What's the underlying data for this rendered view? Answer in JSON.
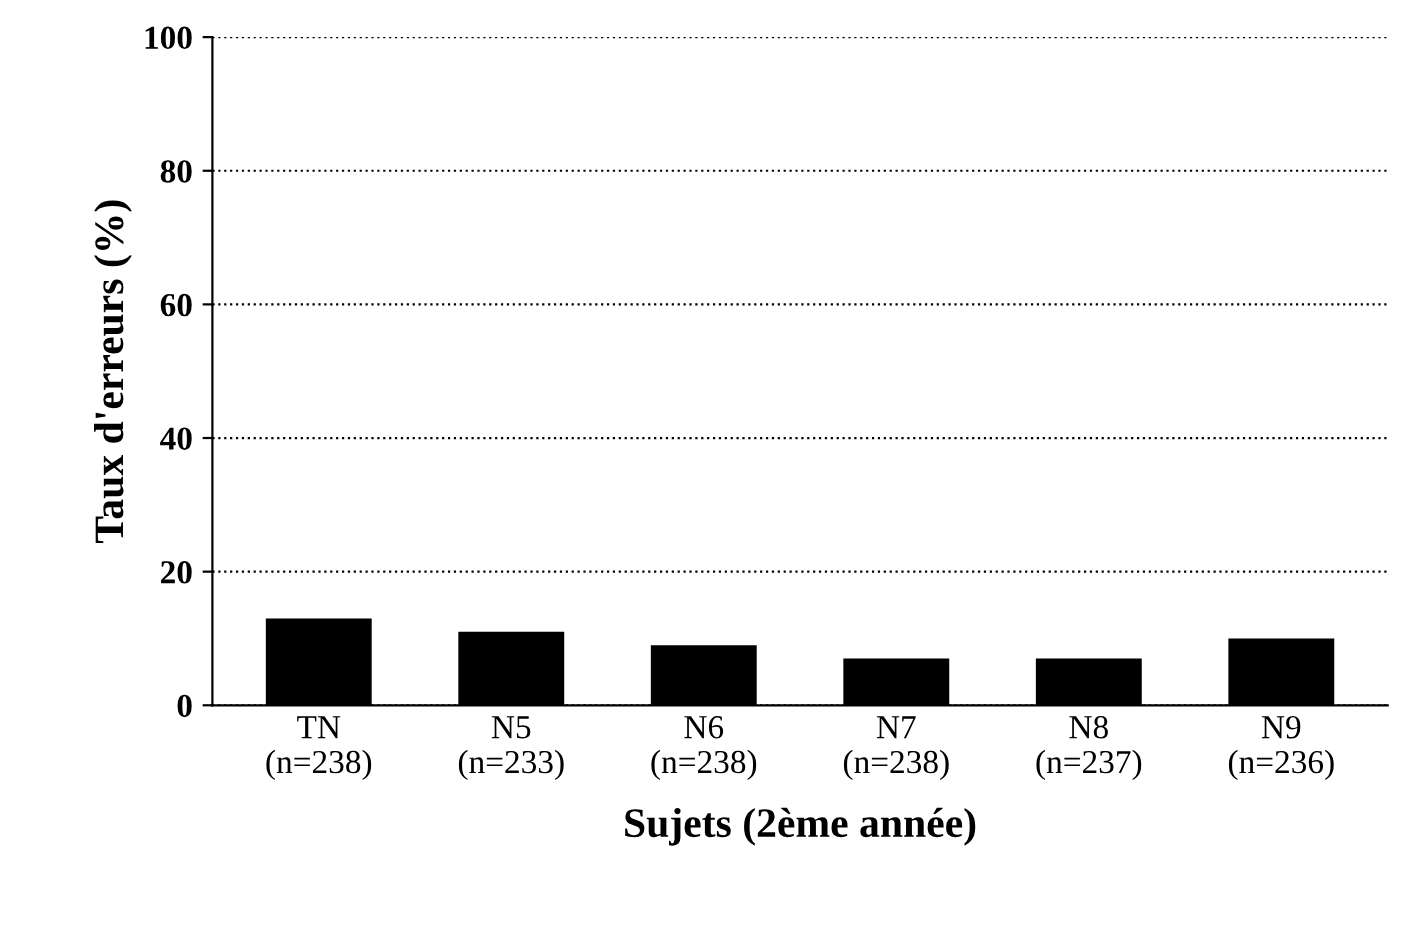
{
  "chart_data": {
    "type": "bar",
    "xlabel": "Sujets (2ème année)",
    "ylabel": "Taux d'erreurs (%)",
    "categories": [
      "TN\n(n=238)",
      "N5\n(n=233)",
      "N6\n(n=238)",
      "N7\n(n=238)",
      "N8\n(n=237)",
      "N9\n(n=236)"
    ],
    "values": [
      13,
      11,
      9,
      7,
      7,
      10
    ],
    "color": "#000000",
    "ylim": [
      0,
      100
    ],
    "yticks": [
      0,
      20,
      40,
      60,
      80,
      100
    ],
    "grid": "y",
    "line_style": "dotted"
  }
}
